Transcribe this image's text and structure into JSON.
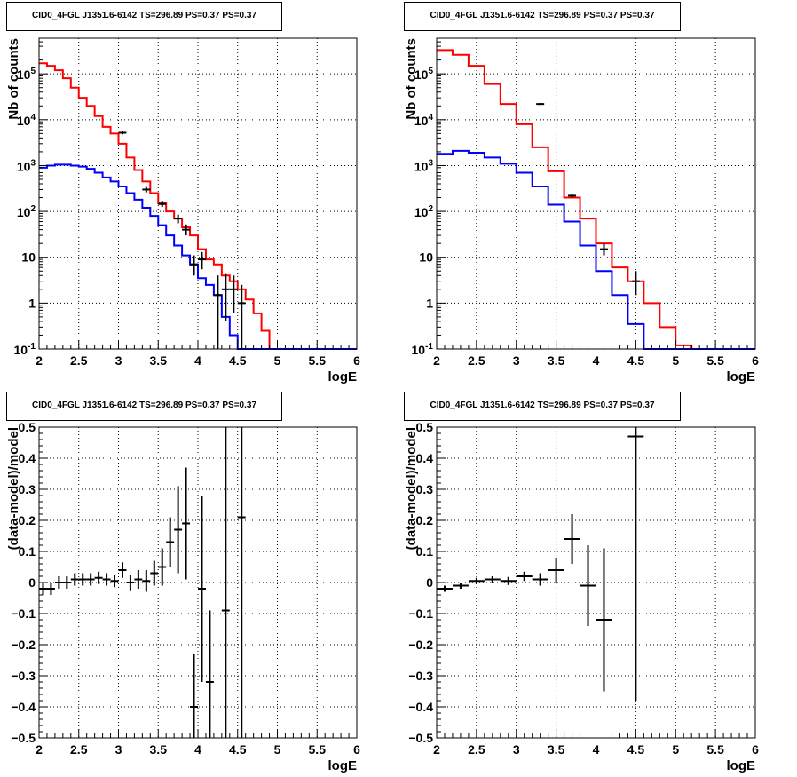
{
  "chart_data": [
    {
      "type": "line",
      "panel": "top-left",
      "title": "CID0_4FGL J1351.6-6142 TS=296.89 PS=0.37 PS=0.37",
      "xlabel": "logE",
      "ylabel": "Nb of counts",
      "xlim": [
        2,
        6
      ],
      "ylim": [
        0.1,
        600000
      ],
      "log_y": true,
      "grid": true,
      "x_ticks": [
        "2",
        "2.5",
        "3",
        "3.5",
        "4",
        "4.5",
        "5",
        "5.5",
        "6"
      ],
      "y_ticks": [
        {
          "v": 0.1,
          "l": "10^-1"
        },
        {
          "v": 1,
          "l": "1"
        },
        {
          "v": 10,
          "l": "10"
        },
        {
          "v": 100,
          "l": "10^2"
        },
        {
          "v": 1000,
          "l": "10^3"
        },
        {
          "v": 10000,
          "l": "10^4"
        },
        {
          "v": 100000,
          "l": "10^5"
        }
      ],
      "bin_edges": [
        2.0,
        2.1,
        2.2,
        2.3,
        2.4,
        2.5,
        2.6,
        2.7,
        2.8,
        2.9,
        3.0,
        3.1,
        3.2,
        3.3,
        3.4,
        3.5,
        3.6,
        3.7,
        3.8,
        3.9,
        4.0,
        4.1,
        4.2,
        4.3,
        4.4,
        4.5,
        4.6,
        4.7,
        4.8,
        4.9,
        5.0,
        5.1,
        5.2,
        5.3,
        5.4,
        5.5,
        5.6,
        5.7,
        5.8,
        5.9,
        6.0
      ],
      "series": [
        {
          "color": "#ff0000",
          "values": [
            170000,
            150000,
            120000,
            80000,
            50000,
            30000,
            20000,
            12000,
            7000,
            5000,
            3000,
            1500,
            800,
            450,
            250,
            150,
            100,
            70,
            45,
            30,
            15,
            9,
            7,
            4,
            3,
            2,
            1.2,
            0.6,
            0.25,
            0.1,
            0.1,
            0.1,
            0.1,
            0.1,
            0.1,
            0.1,
            0.1,
            0.1,
            0.1,
            0.1
          ]
        },
        {
          "color": "#0000ff",
          "values": [
            900,
            1000,
            1050,
            1050,
            1000,
            950,
            850,
            700,
            550,
            450,
            350,
            250,
            180,
            120,
            80,
            50,
            30,
            18,
            11,
            7,
            3.5,
            2.5,
            1.5,
            0.5,
            0.2,
            0.1,
            0.1,
            0.1,
            0.1,
            0.1,
            0.1,
            0.1,
            0.1,
            0.1,
            0.1,
            0.1,
            0.1,
            0.1,
            0.1,
            0.1
          ]
        }
      ],
      "points": [
        {
          "x": 3.05,
          "y": 5200,
          "lo": 4800,
          "hi": 5600
        },
        {
          "x": 3.35,
          "y": 300,
          "lo": 260,
          "hi": 340
        },
        {
          "x": 3.55,
          "y": 145,
          "lo": 125,
          "hi": 170
        },
        {
          "x": 3.75,
          "y": 70,
          "lo": 55,
          "hi": 85
        },
        {
          "x": 3.85,
          "y": 40,
          "lo": 30,
          "hi": 52
        },
        {
          "x": 3.95,
          "y": 7,
          "lo": 4,
          "hi": 11
        },
        {
          "x": 4.05,
          "y": 9,
          "lo": 5.5,
          "hi": 13
        },
        {
          "x": 4.25,
          "y": 1.5,
          "lo": 0.1,
          "hi": 4
        },
        {
          "x": 4.35,
          "y": 2,
          "lo": 0.4,
          "hi": 4.5
        },
        {
          "x": 4.45,
          "y": 2,
          "lo": 0.6,
          "hi": 4
        },
        {
          "x": 4.55,
          "y": 1,
          "lo": 0.1,
          "hi": 2.5
        }
      ]
    },
    {
      "type": "line",
      "panel": "top-right",
      "title": "CID0_4FGL J1351.6-6142 TS=296.89 PS=0.37 PS=0.37",
      "xlabel": "logE",
      "ylabel": "Nb of counts",
      "xlim": [
        2,
        6
      ],
      "ylim": [
        0.1,
        600000
      ],
      "log_y": true,
      "grid": true,
      "x_ticks": [
        "2",
        "2.5",
        "3",
        "3.5",
        "4",
        "4.5",
        "5",
        "5.5",
        "6"
      ],
      "y_ticks": [
        {
          "v": 0.1,
          "l": "10^-1"
        },
        {
          "v": 1,
          "l": "1"
        },
        {
          "v": 10,
          "l": "10"
        },
        {
          "v": 100,
          "l": "10^2"
        },
        {
          "v": 1000,
          "l": "10^3"
        },
        {
          "v": 10000,
          "l": "10^4"
        },
        {
          "v": 100000,
          "l": "10^5"
        }
      ],
      "bin_edges": [
        2.0,
        2.2,
        2.4,
        2.6,
        2.8,
        3.0,
        3.2,
        3.4,
        3.6,
        3.8,
        4.0,
        4.2,
        4.4,
        4.6,
        4.8,
        5.0,
        5.2,
        5.4,
        5.6,
        5.8,
        6.0
      ],
      "series": [
        {
          "color": "#ff0000",
          "values": [
            330000,
            260000,
            150000,
            60000,
            22000,
            8000,
            2500,
            750,
            200,
            70,
            20,
            6,
            3,
            1,
            0.3,
            0.12,
            0.1,
            0.1,
            0.1,
            0.1
          ]
        },
        {
          "color": "#0000ff",
          "values": [
            1800,
            2100,
            1900,
            1500,
            1100,
            700,
            350,
            140,
            60,
            18,
            5,
            1.5,
            0.35,
            0.1,
            0.1,
            0.1,
            0.1,
            0.1,
            0.1,
            0.1
          ]
        }
      ],
      "points": [
        {
          "x": 3.3,
          "y": 22000,
          "lo": 21000,
          "hi": 23000
        },
        {
          "x": 3.7,
          "y": 220,
          "lo": 200,
          "hi": 245
        },
        {
          "x": 4.1,
          "y": 15,
          "lo": 11,
          "hi": 20
        },
        {
          "x": 4.5,
          "y": 3,
          "lo": 1.5,
          "hi": 5
        }
      ]
    },
    {
      "type": "scatter",
      "panel": "bottom-left",
      "title": "CID0_4FGL J1351.6-6142 TS=296.89 PS=0.37 PS=0.37",
      "xlabel": "logE",
      "ylabel": "(data-model)/model",
      "xlim": [
        2,
        6
      ],
      "ylim": [
        -0.5,
        0.5
      ],
      "grid": true,
      "x_ticks": [
        "2",
        "2.5",
        "3",
        "3.5",
        "4",
        "4.5",
        "5",
        "5.5",
        "6"
      ],
      "y_ticks": [
        {
          "v": -0.5,
          "l": "−0.5"
        },
        {
          "v": -0.4,
          "l": "−0.4"
        },
        {
          "v": -0.3,
          "l": "−0.3"
        },
        {
          "v": -0.2,
          "l": "−0.2"
        },
        {
          "v": -0.1,
          "l": "−0.1"
        },
        {
          "v": 0,
          "l": "0"
        },
        {
          "v": 0.1,
          "l": "0.1"
        },
        {
          "v": 0.2,
          "l": "0.2"
        },
        {
          "v": 0.3,
          "l": "0.3"
        },
        {
          "v": 0.4,
          "l": "0.4"
        },
        {
          "v": 0.5,
          "l": "0.5"
        }
      ],
      "points": [
        {
          "x": 2.05,
          "y": -0.02,
          "lo": -0.04,
          "hi": 0.0,
          "xe": 0.05
        },
        {
          "x": 2.15,
          "y": -0.02,
          "lo": -0.04,
          "hi": 0.0,
          "xe": 0.05
        },
        {
          "x": 2.25,
          "y": 0.0,
          "lo": -0.02,
          "hi": 0.02,
          "xe": 0.05
        },
        {
          "x": 2.35,
          "y": 0.0,
          "lo": -0.02,
          "hi": 0.02,
          "xe": 0.05
        },
        {
          "x": 2.45,
          "y": 0.01,
          "lo": -0.01,
          "hi": 0.03,
          "xe": 0.05
        },
        {
          "x": 2.55,
          "y": 0.01,
          "lo": -0.01,
          "hi": 0.03,
          "xe": 0.05
        },
        {
          "x": 2.65,
          "y": 0.01,
          "lo": -0.01,
          "hi": 0.03,
          "xe": 0.05
        },
        {
          "x": 2.75,
          "y": 0.015,
          "lo": -0.005,
          "hi": 0.035,
          "xe": 0.05
        },
        {
          "x": 2.85,
          "y": 0.01,
          "lo": -0.01,
          "hi": 0.03,
          "xe": 0.05
        },
        {
          "x": 2.95,
          "y": 0.005,
          "lo": -0.015,
          "hi": 0.025,
          "xe": 0.05
        },
        {
          "x": 3.05,
          "y": 0.04,
          "lo": 0.015,
          "hi": 0.065,
          "xe": 0.05
        },
        {
          "x": 3.15,
          "y": 0.0,
          "lo": -0.025,
          "hi": 0.025,
          "xe": 0.05
        },
        {
          "x": 3.25,
          "y": 0.01,
          "lo": -0.02,
          "hi": 0.04,
          "xe": 0.05
        },
        {
          "x": 3.35,
          "y": 0.005,
          "lo": -0.03,
          "hi": 0.04,
          "xe": 0.05
        },
        {
          "x": 3.45,
          "y": 0.03,
          "lo": -0.01,
          "hi": 0.07,
          "xe": 0.05
        },
        {
          "x": 3.55,
          "y": 0.05,
          "lo": -0.01,
          "hi": 0.11,
          "xe": 0.05
        },
        {
          "x": 3.65,
          "y": 0.13,
          "lo": 0.05,
          "hi": 0.21,
          "xe": 0.05
        },
        {
          "x": 3.75,
          "y": 0.17,
          "lo": 0.03,
          "hi": 0.31,
          "xe": 0.05
        },
        {
          "x": 3.85,
          "y": 0.19,
          "lo": 0.01,
          "hi": 0.37,
          "xe": 0.05
        },
        {
          "x": 3.95,
          "y": -0.4,
          "lo": -0.57,
          "hi": -0.23,
          "xe": 0.05
        },
        {
          "x": 4.05,
          "y": -0.02,
          "lo": -0.32,
          "hi": 0.28,
          "xe": 0.05
        },
        {
          "x": 4.15,
          "y": -0.32,
          "lo": -0.55,
          "hi": -0.09,
          "xe": 0.05
        },
        {
          "x": 4.35,
          "y": -0.09,
          "lo": -0.55,
          "hi": 0.55,
          "xe": 0.05
        },
        {
          "x": 4.55,
          "y": 0.21,
          "lo": -0.55,
          "hi": 0.55,
          "xe": 0.05
        }
      ]
    },
    {
      "type": "scatter",
      "panel": "bottom-right",
      "title": "CID0_4FGL J1351.6-6142 TS=296.89 PS=0.37 PS=0.37",
      "xlabel": "logE",
      "ylabel": "(data-model)/model",
      "xlim": [
        2,
        6
      ],
      "ylim": [
        -0.5,
        0.5
      ],
      "grid": true,
      "x_ticks": [
        "2",
        "2.5",
        "3",
        "3.5",
        "4",
        "4.5",
        "5",
        "5.5",
        "6"
      ],
      "y_ticks": [
        {
          "v": -0.5,
          "l": "−0.5"
        },
        {
          "v": -0.4,
          "l": "−0.4"
        },
        {
          "v": -0.3,
          "l": "−0.3"
        },
        {
          "v": -0.2,
          "l": "−0.2"
        },
        {
          "v": -0.1,
          "l": "−0.1"
        },
        {
          "v": 0,
          "l": "0"
        },
        {
          "v": 0.1,
          "l": "0.1"
        },
        {
          "v": 0.2,
          "l": "0.2"
        },
        {
          "v": 0.3,
          "l": "0.3"
        },
        {
          "v": 0.4,
          "l": "0.4"
        },
        {
          "v": 0.5,
          "l": "0.5"
        }
      ],
      "points": [
        {
          "x": 2.1,
          "y": -0.02,
          "lo": -0.03,
          "hi": -0.01,
          "xe": 0.1
        },
        {
          "x": 2.3,
          "y": -0.01,
          "lo": -0.02,
          "hi": 0.0,
          "xe": 0.1
        },
        {
          "x": 2.5,
          "y": 0.005,
          "lo": -0.005,
          "hi": 0.015,
          "xe": 0.1
        },
        {
          "x": 2.7,
          "y": 0.01,
          "lo": 0.0,
          "hi": 0.02,
          "xe": 0.1
        },
        {
          "x": 2.9,
          "y": 0.005,
          "lo": -0.008,
          "hi": 0.018,
          "xe": 0.1
        },
        {
          "x": 3.1,
          "y": 0.02,
          "lo": 0.005,
          "hi": 0.035,
          "xe": 0.1
        },
        {
          "x": 3.3,
          "y": 0.01,
          "lo": -0.01,
          "hi": 0.03,
          "xe": 0.1
        },
        {
          "x": 3.5,
          "y": 0.04,
          "lo": 0.0,
          "hi": 0.08,
          "xe": 0.1
        },
        {
          "x": 3.7,
          "y": 0.14,
          "lo": 0.06,
          "hi": 0.22,
          "xe": 0.1
        },
        {
          "x": 3.9,
          "y": -0.01,
          "lo": -0.14,
          "hi": 0.12,
          "xe": 0.1
        },
        {
          "x": 4.1,
          "y": -0.12,
          "lo": -0.35,
          "hi": 0.11,
          "xe": 0.1
        },
        {
          "x": 4.5,
          "y": 0.47,
          "lo": -0.38,
          "hi": 0.55,
          "xe": 0.1
        }
      ]
    }
  ]
}
